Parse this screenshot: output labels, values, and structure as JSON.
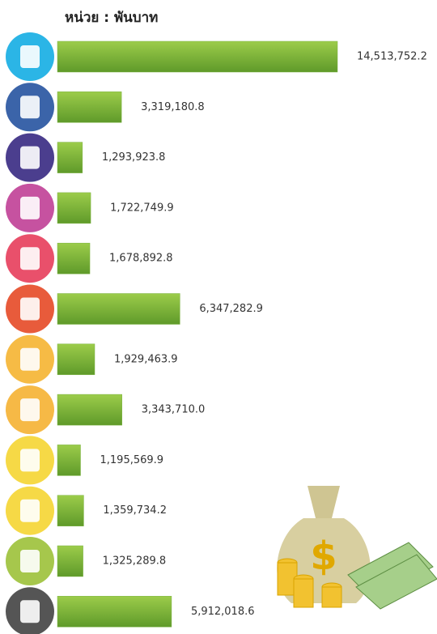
{
  "chart_data": {
    "type": "bar",
    "orientation": "horizontal",
    "title": "หน่วย : พันบาท",
    "categories": [
      null,
      null,
      null,
      null,
      null,
      null,
      null,
      null,
      null,
      null,
      null,
      null
    ],
    "values": [
      14513752.2,
      3319180.8,
      1293923.8,
      1722749.9,
      1678892.8,
      6347282.9,
      1929463.9,
      3343710.0,
      1195569.9,
      1359734.2,
      1325289.8,
      5912018.6
    ],
    "value_labels": [
      "14,513,752.2",
      "3,319,180.8",
      "1,293,923.8",
      "1,722,749.9",
      "1,678,892.8",
      "6,347,282.9",
      "1,929,463.9",
      "3,343,710.0",
      "1,195,569.9",
      "1,359,734.2",
      "1,325,289.8",
      "5,912,018.6"
    ],
    "color": "#7cb342"
  }
}
